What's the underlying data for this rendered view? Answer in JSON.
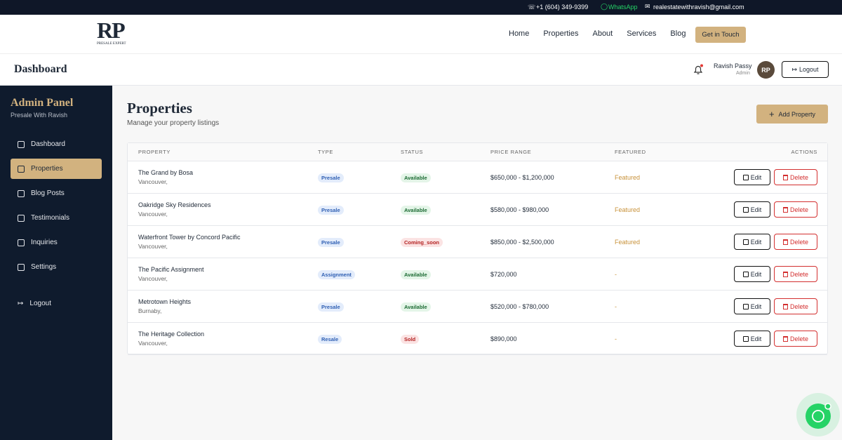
{
  "topbar": {
    "phone": "+1 (604) 349-9399",
    "whatsapp": "WhatsApp",
    "email": "realestatewithravish@gmail.com"
  },
  "nav": {
    "logo": "RP",
    "logo_sub": "PRESALE EXPERT",
    "links": [
      "Home",
      "Properties",
      "About",
      "Services",
      "Blog"
    ],
    "cta": "Get in Touch"
  },
  "header": {
    "title": "Dashboard",
    "user_name": "Ravish Passy",
    "user_role": "Admin",
    "avatar": "RP",
    "logout": "Logout"
  },
  "sidebar": {
    "title": "Admin Panel",
    "subtitle": "Presale With Ravish",
    "items": [
      "Dashboard",
      "Properties",
      "Blog Posts",
      "Testimonials",
      "Inquiries",
      "Settings"
    ],
    "active": 1,
    "logout": "Logout"
  },
  "page": {
    "title": "Properties",
    "subtitle": "Manage your property listings",
    "add_button": "Add Property"
  },
  "table": {
    "columns": [
      "PROPERTY",
      "TYPE",
      "STATUS",
      "PRICE RANGE",
      "FEATURED",
      "ACTIONS"
    ],
    "rows": [
      {
        "name": "The Grand by Bosa",
        "location": "Vancouver,",
        "type": "Presale",
        "status": "Available",
        "status_color": "green",
        "price": "$650,000 - $1,200,000",
        "featured": "Featured"
      },
      {
        "name": "Oakridge Sky Residences",
        "location": "Vancouver,",
        "type": "Presale",
        "status": "Available",
        "status_color": "green",
        "price": "$580,000 - $980,000",
        "featured": "Featured"
      },
      {
        "name": "Waterfront Tower by Concord Pacific",
        "location": "Vancouver,",
        "type": "Presale",
        "status": "Coming_soon",
        "status_color": "red",
        "price": "$850,000 - $2,500,000",
        "featured": "Featured"
      },
      {
        "name": "The Pacific Assignment",
        "location": "Vancouver,",
        "type": "Assignment",
        "status": "Available",
        "status_color": "green",
        "price": "$720,000",
        "featured": "-"
      },
      {
        "name": "Metrotown Heights",
        "location": "Burnaby,",
        "type": "Presale",
        "status": "Available",
        "status_color": "green",
        "price": "$520,000 - $780,000",
        "featured": "-"
      },
      {
        "name": "The Heritage Collection",
        "location": "Vancouver,",
        "type": "Resale",
        "status": "Sold",
        "status_color": "red",
        "price": "$890,000",
        "featured": "-"
      }
    ],
    "edit": "Edit",
    "delete": "Delete"
  }
}
